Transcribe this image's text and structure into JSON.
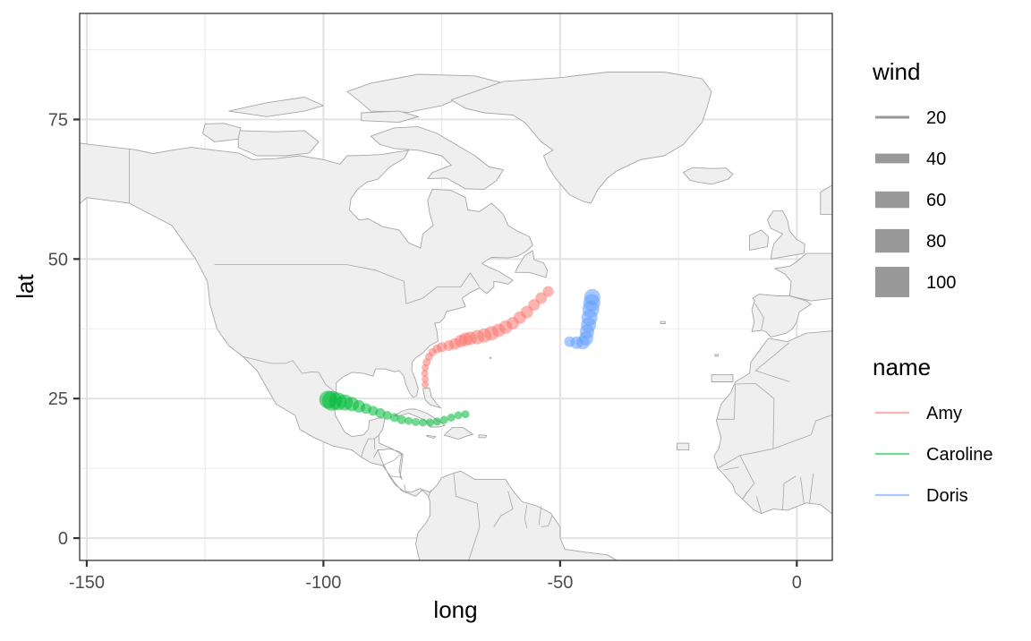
{
  "chart_data": {
    "type": "scatter",
    "title": "",
    "xlabel": "long",
    "ylabel": "lat",
    "xlim": [
      -151.5,
      7.5
    ],
    "ylim": [
      -4,
      94
    ],
    "x_ticks": [
      -150,
      -100,
      -50,
      0
    ],
    "x_tick_labels": [
      "-150",
      "-100",
      "-50",
      "0"
    ],
    "y_ticks": [
      0,
      25,
      50,
      75
    ],
    "y_tick_labels": [
      "0",
      "25",
      "50",
      "75"
    ],
    "grid": true,
    "background_map": "North Atlantic coastlines (light grey land)",
    "colors": {
      "Amy": "#F8766D",
      "Caroline": "#00BA38",
      "Doris": "#619CFF",
      "land": "#efefef",
      "coast": "#a6a6a6",
      "legend_key": "#999999"
    },
    "legends": [
      {
        "title": "wind",
        "placement": "right",
        "keys": [
          {
            "label": "20",
            "value": 20
          },
          {
            "label": "40",
            "value": 40
          },
          {
            "label": "60",
            "value": 60
          },
          {
            "label": "80",
            "value": 80
          },
          {
            "label": "100",
            "value": 100
          }
        ]
      },
      {
        "title": "name",
        "placement": "right",
        "keys": [
          {
            "label": "Amy",
            "series": "Amy"
          },
          {
            "label": "Caroline",
            "series": "Caroline"
          },
          {
            "label": "Doris",
            "series": "Doris"
          }
        ]
      }
    ],
    "series": [
      {
        "name": "Amy",
        "points": [
          {
            "x": -78.5,
            "y": 27.5,
            "wind": 25
          },
          {
            "x": -78.5,
            "y": 28.5,
            "wind": 25
          },
          {
            "x": -78.6,
            "y": 29.5,
            "wind": 25
          },
          {
            "x": -78.5,
            "y": 30.5,
            "wind": 25
          },
          {
            "x": -78.2,
            "y": 31.5,
            "wind": 30
          },
          {
            "x": -77.7,
            "y": 32.5,
            "wind": 30
          },
          {
            "x": -77.0,
            "y": 33.3,
            "wind": 30
          },
          {
            "x": -76.0,
            "y": 33.9,
            "wind": 35
          },
          {
            "x": -75.0,
            "y": 34.2,
            "wind": 40
          },
          {
            "x": -73.5,
            "y": 34.5,
            "wind": 45
          },
          {
            "x": -72.2,
            "y": 34.8,
            "wind": 50
          },
          {
            "x": -71.0,
            "y": 35.3,
            "wind": 55
          },
          {
            "x": -70.0,
            "y": 35.6,
            "wind": 60
          },
          {
            "x": -69.0,
            "y": 35.8,
            "wind": 60
          },
          {
            "x": -67.5,
            "y": 36.0,
            "wind": 65
          },
          {
            "x": -66.0,
            "y": 36.3,
            "wind": 65
          },
          {
            "x": -64.5,
            "y": 36.7,
            "wind": 65
          },
          {
            "x": -63.0,
            "y": 37.2,
            "wind": 60
          },
          {
            "x": -61.5,
            "y": 37.8,
            "wind": 60
          },
          {
            "x": -60.0,
            "y": 38.5,
            "wind": 55
          },
          {
            "x": -58.5,
            "y": 39.5,
            "wind": 55
          },
          {
            "x": -57.0,
            "y": 40.5,
            "wind": 55
          },
          {
            "x": -55.5,
            "y": 41.8,
            "wind": 50
          },
          {
            "x": -54.0,
            "y": 43.0,
            "wind": 50
          },
          {
            "x": -52.5,
            "y": 44.2,
            "wind": 45
          }
        ]
      },
      {
        "name": "Caroline",
        "points": [
          {
            "x": -70.0,
            "y": 22.2,
            "wind": 30
          },
          {
            "x": -71.5,
            "y": 22.0,
            "wind": 30
          },
          {
            "x": -73.0,
            "y": 21.6,
            "wind": 30
          },
          {
            "x": -74.5,
            "y": 21.2,
            "wind": 30
          },
          {
            "x": -76.0,
            "y": 20.9,
            "wind": 30
          },
          {
            "x": -77.5,
            "y": 20.7,
            "wind": 30
          },
          {
            "x": -79.0,
            "y": 20.7,
            "wind": 30
          },
          {
            "x": -80.5,
            "y": 20.8,
            "wind": 30
          },
          {
            "x": -82.0,
            "y": 21.0,
            "wind": 30
          },
          {
            "x": -83.5,
            "y": 21.2,
            "wind": 35
          },
          {
            "x": -85.0,
            "y": 21.6,
            "wind": 35
          },
          {
            "x": -86.5,
            "y": 22.0,
            "wind": 35
          },
          {
            "x": -88.0,
            "y": 22.4,
            "wind": 40
          },
          {
            "x": -89.5,
            "y": 22.8,
            "wind": 40
          },
          {
            "x": -91.0,
            "y": 23.2,
            "wind": 45
          },
          {
            "x": -92.5,
            "y": 23.6,
            "wind": 55
          },
          {
            "x": -94.0,
            "y": 24.0,
            "wind": 65
          },
          {
            "x": -95.5,
            "y": 24.3,
            "wind": 75
          },
          {
            "x": -97.0,
            "y": 24.5,
            "wind": 85
          },
          {
            "x": -98.2,
            "y": 24.6,
            "wind": 95
          },
          {
            "x": -99.0,
            "y": 24.8,
            "wind": 85
          }
        ]
      },
      {
        "name": "Doris",
        "points": [
          {
            "x": -48.0,
            "y": 35.2,
            "wind": 45
          },
          {
            "x": -46.5,
            "y": 35.0,
            "wind": 55
          },
          {
            "x": -45.2,
            "y": 35.0,
            "wind": 60
          },
          {
            "x": -44.5,
            "y": 35.8,
            "wind": 65
          },
          {
            "x": -44.3,
            "y": 37.0,
            "wind": 65
          },
          {
            "x": -44.0,
            "y": 38.2,
            "wind": 70
          },
          {
            "x": -43.8,
            "y": 39.5,
            "wind": 75
          },
          {
            "x": -43.5,
            "y": 41.0,
            "wind": 80
          },
          {
            "x": -43.3,
            "y": 42.2,
            "wind": 80
          },
          {
            "x": -43.2,
            "y": 43.2,
            "wind": 75
          }
        ]
      }
    ]
  }
}
